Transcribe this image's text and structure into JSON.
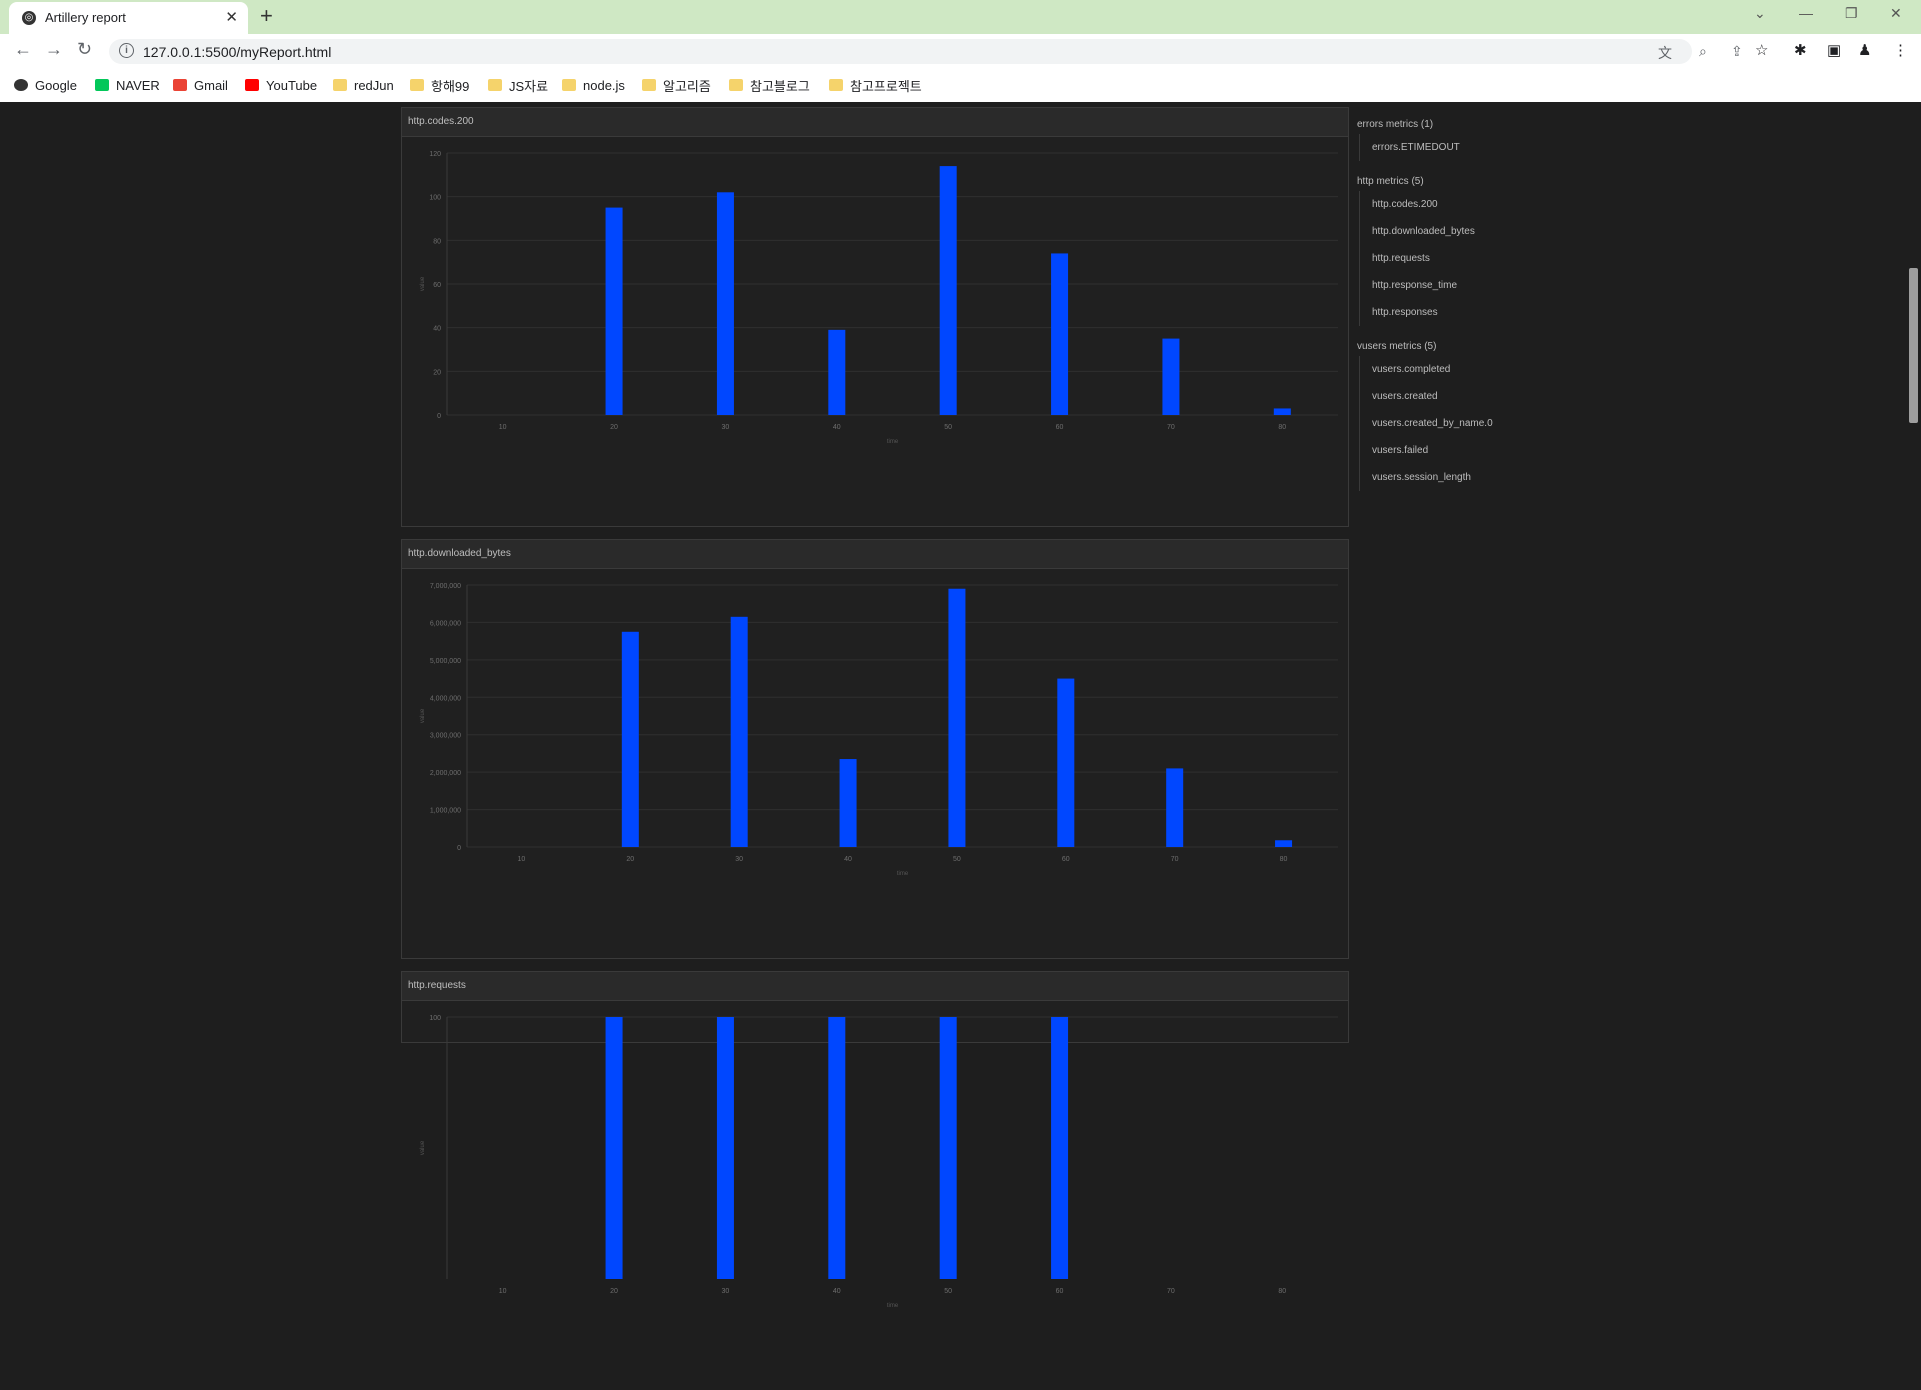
{
  "browser": {
    "tab_title": "Artillery report",
    "url": "127.0.0.1:5500/myReport.html",
    "bookmarks": [
      {
        "label": "Google",
        "icon": "google-icon"
      },
      {
        "label": "NAVER",
        "icon": "naver-icon"
      },
      {
        "label": "Gmail",
        "icon": "gmail-icon"
      },
      {
        "label": "YouTube",
        "icon": "youtube-icon"
      },
      {
        "label": "redJun",
        "icon": "folder-icon"
      },
      {
        "label": "항해99",
        "icon": "folder-icon"
      },
      {
        "label": "JS자료",
        "icon": "folder-icon"
      },
      {
        "label": "node.js",
        "icon": "folder-icon"
      },
      {
        "label": "알고리즘",
        "icon": "folder-icon"
      },
      {
        "label": "참고블로그",
        "icon": "folder-icon"
      },
      {
        "label": "참고프로젝트",
        "icon": "folder-icon"
      }
    ]
  },
  "colors": {
    "bar": "#0047ff",
    "page_bg": "#1e1e1e",
    "tab_strip": "#cfe8c4"
  },
  "sidebar": {
    "groups": [
      {
        "title": "errors metrics (1)",
        "items": [
          "errors.ETIMEDOUT"
        ]
      },
      {
        "title": "http metrics (5)",
        "items": [
          "http.codes.200",
          "http.downloaded_bytes",
          "http.requests",
          "http.response_time",
          "http.responses"
        ]
      },
      {
        "title": "vusers metrics (5)",
        "items": [
          "vusers.completed",
          "vusers.created",
          "vusers.created_by_name.0",
          "vusers.failed",
          "vusers.session_length"
        ]
      }
    ]
  },
  "chart_data": [
    {
      "type": "bar",
      "title": "http.codes.200",
      "xlabel": "time",
      "ylabel": "value",
      "categories": [
        "10",
        "20",
        "30",
        "40",
        "50",
        "60",
        "70",
        "80"
      ],
      "values": [
        0,
        95,
        102,
        39,
        114,
        74,
        35,
        3
      ],
      "yticks": [
        "0",
        "20",
        "40",
        "60",
        "80",
        "100",
        "120"
      ],
      "ylim": [
        0,
        120
      ],
      "grid": true
    },
    {
      "type": "bar",
      "title": "http.downloaded_bytes",
      "xlabel": "time",
      "ylabel": "value",
      "categories": [
        "10",
        "20",
        "30",
        "40",
        "50",
        "60",
        "70",
        "80"
      ],
      "values": [
        0,
        5750000,
        6150000,
        2350000,
        6900000,
        4500000,
        2100000,
        180000
      ],
      "yticks": [
        "0",
        "1,000,000",
        "2,000,000",
        "3,000,000",
        "4,000,000",
        "5,000,000",
        "6,000,000",
        "7,000,000"
      ],
      "ylim": [
        0,
        7000000
      ],
      "grid": true
    },
    {
      "type": "bar",
      "title": "http.requests",
      "xlabel": "time",
      "ylabel": "value",
      "categories": [
        "10",
        "20",
        "30",
        "40",
        "50",
        "60",
        "70",
        "80"
      ],
      "values": [
        0,
        100,
        100,
        100,
        100,
        100,
        0,
        0
      ],
      "yticks": [
        "100"
      ],
      "ylim": [
        0,
        100
      ],
      "grid": true
    }
  ]
}
